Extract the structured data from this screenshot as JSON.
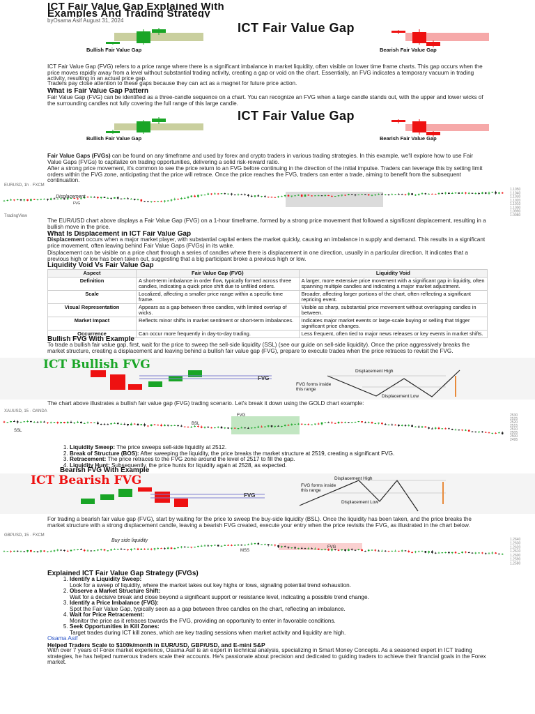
{
  "article": {
    "title_line1": "ICT Fair Value Gap Explained With",
    "title_line2": "Examples And Trading Strategy",
    "byline": "byOsama Asif August 31, 2024"
  },
  "banner1": {
    "title": "ICT Fair Value Gap",
    "bullish_label": "Bullish Fair Value Gap",
    "bearish_label": "Bearish Fair Value Gap"
  },
  "intro": {
    "p1": "ICT Fair Value Gap (FVG) refers to a price range where there is a significant imbalance in market liquidity, often visible on lower time frame charts. This gap occurs when the price moves rapidly away from a level without substantial trading activity, creating a gap or void on the chart. Essentially, an FVG indicates a temporary vacuum in trading activity, resulting in an actual price gap.",
    "p2": "Traders pay close attention to these gaps because they can act as a magnet for future price action."
  },
  "section_pattern": {
    "heading": "What is Fair Value Gap Pattern",
    "p1": "Fair Value Gap (FVG) can be identified as a three-candle sequence on a chart. You can recognize an FVG when a large candle stands out, with the upper and lower wicks of the surrounding candles not fully covering the full range of this large candle."
  },
  "banner2": {
    "title": "ICT Fair Value Gap",
    "bullish_label": "Bullish Fair Value Gap",
    "bearish_label": "Bearish Fair Value Gap"
  },
  "section_markets": {
    "p1_bold": "Fair Value Gaps (FVGs)",
    "p1": " can be found on any timeframe and used by forex and crypto traders in various trading strategies. In this example, we'll explore how to use Fair Value Gaps (FVGs) to capitalize on trading opportunities, delivering a solid risk-reward ratio.",
    "p2": "After a strong price movement, it's common to see the price return to an FVG before continuing in the direction of the initial impulse. Traders can leverage this by setting limit orders within the FVG zone, anticipating that the price will retrace. Once the price reaches the FVG, traders can enter a trade, aiming to benefit from the subsequent continuation."
  },
  "chart1": {
    "header": "EURUSD, 1h · FXCM",
    "annotation": "Displacement",
    "fvg_label": "FVG",
    "axis_prices": [
      "1.1050",
      "1.1040",
      "1.1030",
      "1.1020",
      "1.1010",
      "1.1000",
      "1.0990",
      "1.0980"
    ],
    "footer": "TradingView"
  },
  "section_eurusd": {
    "p1": "The EUR/USD chart above displays a Fair Value Gap (FVG) on a 1-hour timeframe, formed by a strong price movement that followed a significant displacement, resulting in a bullish move in the price."
  },
  "section_displacement": {
    "heading": "What Is Displacement in ICT Fair Value Gap",
    "p1_bold": "Displacement",
    "p1": " occurs when a major market player, with substantial capital enters the market quickly, causing an imbalance in supply and demand. This results in a significant price movement, often leaving behind Fair Value Gaps (FVGs) in its wake.",
    "p2": "Displacement can be visible on a price chart through a series of candles where there is displacement in one direction, usually in a particular direction. It indicates that a previous high or low has been taken out, suggesting that a big participant broke a previous high or low."
  },
  "table": {
    "heading": "Liquidity Void Vs Fair Value Gap",
    "columns": [
      "Aspect",
      "Fair Value Gap (FVG)",
      "Liquidity Void"
    ],
    "rows": [
      [
        "Definition",
        "A short-term imbalance in order flow, typically formed across three candles, indicating a quick price shift due to unfilled orders.",
        "A larger, more extensive price movement with a significant gap in liquidity, often spanning multiple candles and indicating a major market adjustment."
      ],
      [
        "Scale",
        "Localized, affecting a smaller price range within a specific time frame.",
        "Broader, affecting larger portions of the chart, often reflecting a significant repricing event."
      ],
      [
        "Visual Representation",
        "Appears as a gap between three candles, with limited overlap of wicks.",
        "Visible as sharp, substantial price movement without overlapping candles in between."
      ],
      [
        "Market Impact",
        "Reflects minor shifts in market sentiment or short-term imbalances.",
        "Indicates major market events or large-scale buying or selling that trigger significant price changes."
      ],
      [
        "Occurrence",
        "Can occur more frequently in day-to-day trading.",
        "Less frequent, often tied to major news releases or key events in market shifts."
      ]
    ]
  },
  "section_bullish": {
    "heading": "Bullish FVG With Example",
    "p1": "To trade a bullish fair value gap, first, wait for the price to sweep the sell-side liquidity (SSL) (see our guide on sell-side liquidity). Once the price aggressively breaks the market structure, creating a displacement and leaving behind a bullish fair value gap (FVG), prepare to execute trades when the price retraces to revisit the FVG."
  },
  "bullish_banner": {
    "title": "ICT Bullish FVG",
    "fvg": "FVG",
    "disp_high": "Displacement High",
    "disp_low": "Displacement Low",
    "fvg_forms": "FVG forms inside this range"
  },
  "section_bullish_chart": {
    "p1": "The chart above illustrates a bullish fair value gap (FVG) trading scenario. Let's break it down using the GOLD chart example:"
  },
  "chart2": {
    "header": "XAUUSD, 15 · OANDA",
    "fvg_label": "FVG",
    "ssl_label": "SSL",
    "bsl_label": "BSL",
    "axis_prices": [
      "2530",
      "2525",
      "2520",
      "2515",
      "2510",
      "2505",
      "2500",
      "2495"
    ]
  },
  "steps_bullish": [
    {
      "bold": "Liquidity Sweep:",
      "text": " The price sweeps sell-side liquidity at 2512."
    },
    {
      "bold": "Break of Structure (BOS):",
      "text": " After sweeping the liquidity, the price breaks the market structure at 2519, creating a significant FVG."
    },
    {
      "bold": "Retracement:",
      "text": " The price retraces to the FVG zone around the level of 2517 to fill the gap."
    },
    {
      "bold": "Liquidity Hunt:",
      "text": " Subsequently, the price hunts for liquidity again at 2528, as expected."
    }
  ],
  "section_bearish": {
    "heading": "Bearish FVG With Example"
  },
  "bearish_banner": {
    "title": "ICT Bearish FVG",
    "fvg": "FVG",
    "disp_high": "Displacement High",
    "disp_low": "Displacement Low",
    "fvg_forms": "FVG forms inside this range"
  },
  "section_bearish_text": {
    "p1": "For trading a bearish fair value gap (FVG), start by waiting for the price to sweep the buy-side liquidity (BSL). Once the liquidity has been taken, and the price breaks the market structure with a strong displacement candle, leaving a bearish FVG created, execute your entry when the price revisits the FVG, as illustrated in the chart below."
  },
  "chart3": {
    "header": "GBPUSD, 15 · FXCM",
    "annotation": "Buy side liquidity",
    "fvg_label": "FVG",
    "mss_label": "MSS",
    "axis_prices": [
      "1.2640",
      "1.2630",
      "1.2620",
      "1.2610",
      "1.2600",
      "1.2590",
      "1.2580"
    ]
  },
  "strategy": {
    "heading": "Explained ICT Fair Value Gap Strategy (FVGs)",
    "items": [
      {
        "bold": "Identify a Liquidity Sweep:",
        "text": "Look for a sweep of liquidity, where the market takes out key highs or lows, signaling potential trend exhaustion."
      },
      {
        "bold": "Observe a Market Structure Shift:",
        "text": "Wait for a decisive break and close beyond a significant support or resistance level, indicating a possible trend change."
      },
      {
        "bold": "Identify a Price Imbalance (FVG):",
        "text": "Spot the Fair Value Gap, typically seen as a gap between three candles on the chart, reflecting an imbalance."
      },
      {
        "bold": "Wait for Price Retracement:",
        "text": "Monitor the price as it retraces towards the FVG, providing an opportunity to enter in favorable conditions."
      },
      {
        "bold": "Seek Opportunities in Kill Zones:",
        "text": "Target trades during ICT kill zones, which are key trading sessions when market activity and liquidity are high."
      }
    ]
  },
  "author": {
    "name": "Osama Asif",
    "headline": "Helped Traders Scale to $100k/month in EUR/USD, GBP/USD, and E-mini S&P",
    "bio": "With over 7 years of Forex market experience, Osama Asif is an expert in technical analysis, specializing in Smart Money Concepts. As a seasoned expert in ICT trading strategies, he has helped numerous traders scale their accounts. He's passionate about precision and dedicated to guiding traders to achieve their financial goals in the Forex market."
  },
  "colors": {
    "bull": "#19a526",
    "bear": "#ee1111",
    "bull_zone": "#c9cf9e",
    "bear_zone": "#f6a9a9",
    "link": "#2b55c8"
  }
}
